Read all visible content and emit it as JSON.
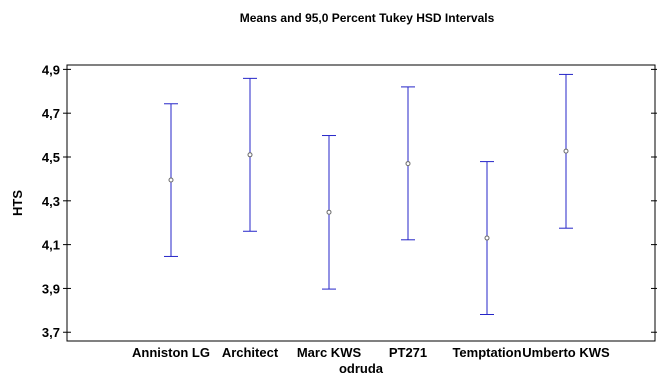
{
  "chart_data": {
    "type": "scatter",
    "title": "Means and 95,0 Percent Tukey HSD Intervals",
    "xlabel": "odruda",
    "ylabel": "HTS",
    "categories": [
      "Anniston LG",
      "Architect",
      "Marc KWS",
      "PT271",
      "Temptation",
      "Umberto KWS"
    ],
    "means": [
      4.395,
      4.51,
      4.248,
      4.47,
      4.13,
      4.527
    ],
    "lower": [
      4.046,
      4.161,
      3.897,
      4.122,
      3.781,
      4.175
    ],
    "upper": [
      4.743,
      4.859,
      4.598,
      4.82,
      4.479,
      4.877
    ],
    "y_ticks": [
      3.7,
      3.9,
      4.1,
      4.3,
      4.5,
      4.7,
      4.9
    ],
    "y_tick_labels": [
      "3,7",
      "3,9",
      "4,1",
      "4,3",
      "4,5",
      "4,7",
      "4,9"
    ],
    "ylim": [
      3.66,
      4.92
    ],
    "grid": false,
    "colors": {
      "interval": "#2424c8",
      "marker": "#6a6a6a",
      "axis": "#000000"
    }
  }
}
